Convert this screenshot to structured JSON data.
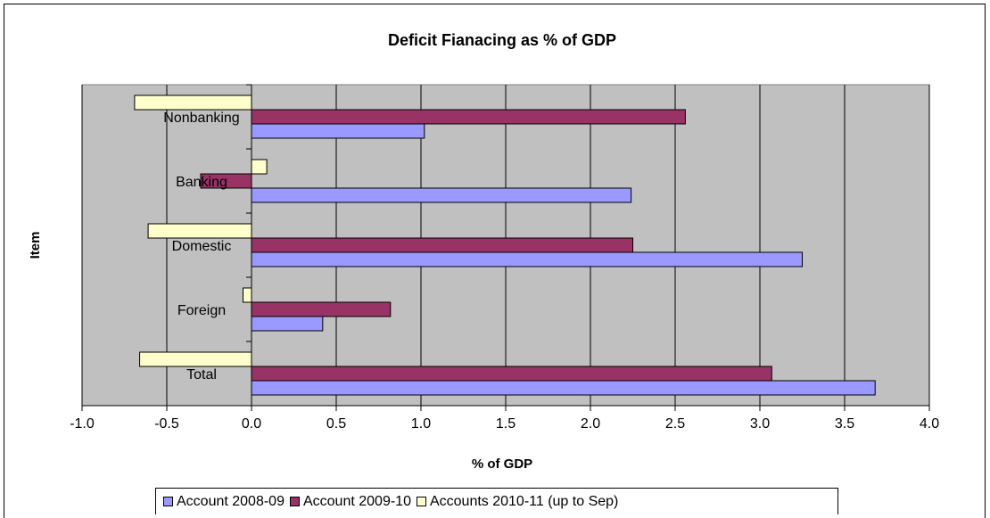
{
  "chart_data": {
    "type": "bar",
    "orientation": "horizontal",
    "title": "Deficit Fianacing as % of GDP",
    "xlabel": "% of GDP",
    "ylabel": "Item",
    "xlim": [
      -1.0,
      4.0
    ],
    "xticks": [
      "-1.0",
      "-0.5",
      "0.0",
      "0.5",
      "1.0",
      "1.5",
      "2.0",
      "2.5",
      "3.0",
      "3.5",
      "4.0"
    ],
    "categories": [
      "Nonbanking",
      "Banking",
      "Domestic",
      "Foreign",
      "Total"
    ],
    "series": [
      {
        "name": "Account 2008-09",
        "color": "#9999ff",
        "values": [
          1.02,
          2.24,
          3.25,
          0.42,
          3.68
        ]
      },
      {
        "name": "Account 2009-10",
        "color": "#993366",
        "values": [
          2.56,
          -0.3,
          2.25,
          0.82,
          3.07
        ]
      },
      {
        "name": "Accounts 2010-11 (up to Sep)",
        "color": "#ffffcc",
        "values": [
          -0.69,
          0.09,
          -0.61,
          -0.05,
          -0.66
        ]
      }
    ],
    "plot_background": "#c0c0c0",
    "grid": "vertical",
    "legend_position": "bottom"
  }
}
